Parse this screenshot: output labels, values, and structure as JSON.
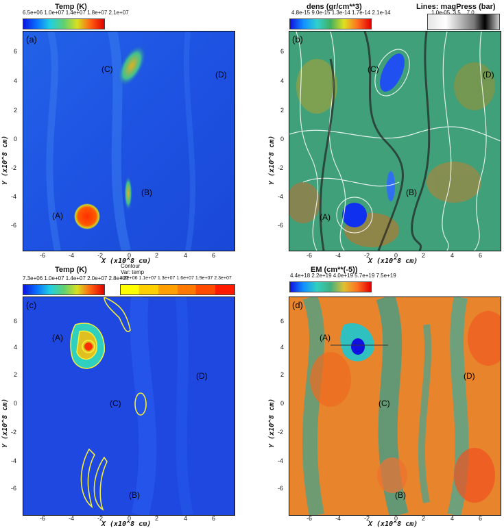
{
  "panels": [
    {
      "letter": "(a)",
      "colorbar_title": "Temp (K)",
      "colorbar_ticks": [
        "6.5e+06",
        "1.0e+07",
        "1.4e+07",
        "1.8e+07",
        "2.1e+07"
      ],
      "xlabel": "X (x10^8 cm)",
      "ylabel": "Y (x10^8 cm)",
      "regions": [
        "(A)",
        "(B)",
        "(C)",
        "(D)"
      ]
    },
    {
      "letter": "(b)",
      "colorbar_title": "dens (gr/cm**3)",
      "colorbar_ticks": [
        "4.8e-15",
        "9.0e-15",
        "1.3e-14",
        "1.7e-14",
        "2.1e-14"
      ],
      "lines_title": "Lines: magPress (bar)",
      "lines_ticks": [
        "1.0e-05",
        "3.5",
        "7.0"
      ],
      "xlabel": "X (x10^8 cm)",
      "ylabel": "Y (x10^8 cm)",
      "regions": [
        "(A)",
        "(B)",
        "(C)",
        "(D)"
      ]
    },
    {
      "letter": "(c)",
      "colorbar_title": "Temp (K)",
      "colorbar_ticks": [
        "7.3e+06",
        "1.0e+07",
        "1.4e+07",
        "2.0e+07",
        "2.8e+07"
      ],
      "contour_title": "Contour",
      "contour_var": "Var: temp",
      "contour_ticks": [
        "8.8e+06",
        "1.1e+07",
        "1.3e+07",
        "1.6e+07",
        "1.9e+07",
        "2.3e+07"
      ],
      "xlabel": "X (x10^8 cm)",
      "ylabel": "Y (x10^8 cm)",
      "regions": [
        "(A)",
        "(B)",
        "(C)",
        "(D)"
      ]
    },
    {
      "letter": "(d)",
      "colorbar_title": "EM (cm**(-5))",
      "colorbar_ticks": [
        "4.4e+18",
        "2.2e+19",
        "4.0e+19",
        "5.7e+19",
        "7.5e+19"
      ],
      "xlabel": "X (x10^8 cm)",
      "ylabel": "Y (x10^8 cm)",
      "regions": [
        "(A)",
        "(B)",
        "(C)",
        "(D)"
      ]
    }
  ],
  "x_ticks": [
    "-6",
    "-4",
    "-2",
    "0",
    "2",
    "4",
    "6"
  ],
  "y_ticks": [
    "6",
    "4",
    "2",
    "0",
    "-2",
    "-4",
    "-6"
  ],
  "colors": {
    "background_blue": "#1e4fe0",
    "dens_green": "#4fa07a",
    "em_orange": "#e8802a",
    "contour_yellow": "#f5ee3a"
  }
}
